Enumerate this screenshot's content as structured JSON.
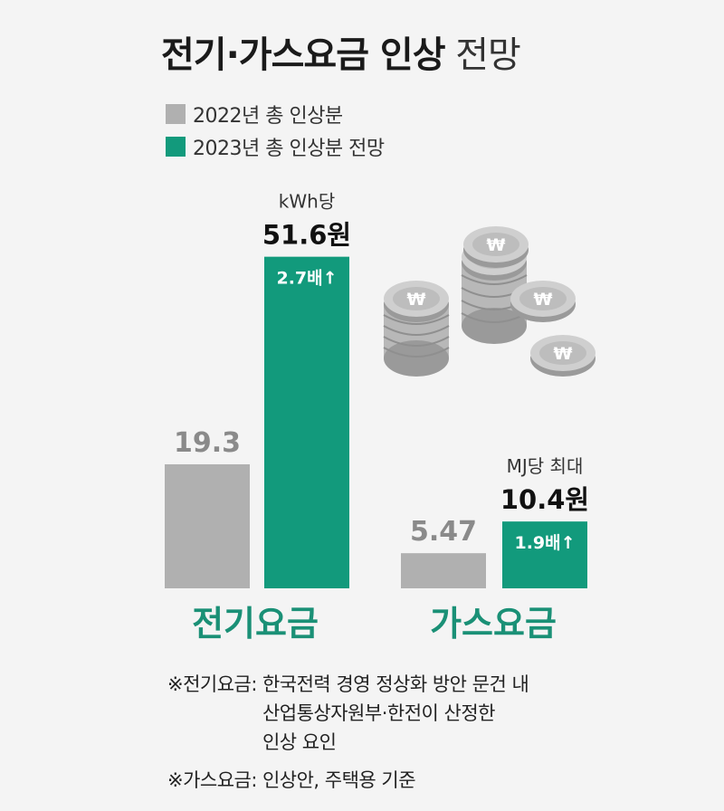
{
  "title": {
    "bold": "전기·가스요금 인상",
    "light": "전망"
  },
  "colors": {
    "gray": "#b0b0b0",
    "teal": "#129a7c",
    "teal_text": "#1a9076"
  },
  "chart_data": {
    "type": "bar",
    "categories": [
      "전기요금",
      "가스요금"
    ],
    "series": [
      {
        "name": "2022년 총 인상분",
        "values": [
          19.3,
          5.47
        ],
        "labels": [
          "19.3",
          "5.47"
        ]
      },
      {
        "name": "2023년 총 인상분 전망",
        "values": [
          51.6,
          10.4
        ],
        "labels": [
          "51.6원",
          "10.4원"
        ]
      }
    ],
    "unit_labels": [
      "kWh당",
      "MJ당 최대"
    ],
    "multipliers": [
      "2.7배↑",
      "1.9배↑"
    ],
    "legend_position": "top-left",
    "grid": false
  },
  "notes": [
    {
      "head": "※전기요금:",
      "lines": [
        "한국전력 경영 정상화 방안 문건 내",
        "산업통상자원부·한전이 산정한",
        "인상 요인"
      ]
    },
    {
      "head": "※가스요금:",
      "lines": [
        "인상안, 주택용 기준"
      ]
    }
  ],
  "icons": [
    "coin-stack-icon"
  ]
}
